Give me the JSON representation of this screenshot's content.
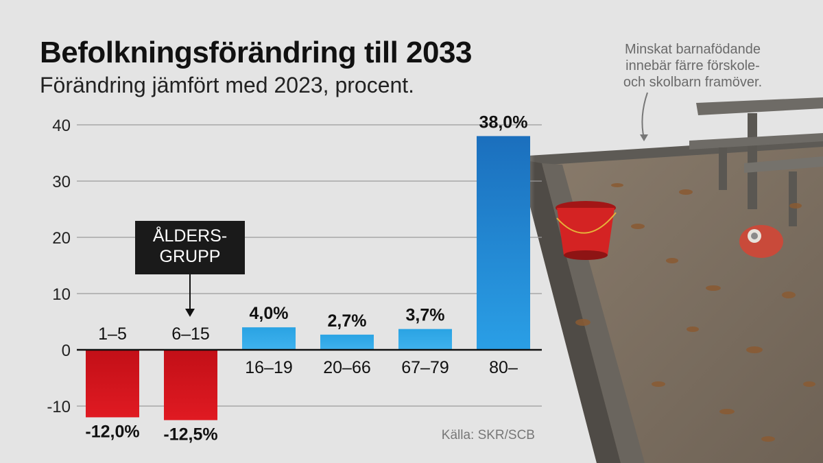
{
  "header": {
    "title": "Befolkningsförändring till 2033",
    "subtitle": "Förändring jämfört med 2023, procent."
  },
  "annotation": {
    "lines": [
      "Minskat barnafödande",
      "innebär färre förskole-",
      "och skolbarn framöver."
    ]
  },
  "callout": {
    "lines": [
      "ÅLDERS-",
      "GRUPP"
    ]
  },
  "source": "Källa: SKR/SCB",
  "colors": {
    "negative": "#d0141c",
    "positive": "#29a0e0",
    "highlight": "#1b7fc9",
    "gridline": "#9a9a9a",
    "background": "#e4e4e4"
  },
  "chart_data": {
    "type": "bar",
    "title": "Befolkningsförändring till 2033",
    "subtitle": "Förändring jämfört med 2023, procent.",
    "categories": [
      "1–5",
      "6–15",
      "16–19",
      "20–66",
      "67–79",
      "80–"
    ],
    "values": [
      -12.0,
      -12.5,
      4.0,
      2.7,
      3.7,
      38.0
    ],
    "data_labels": [
      "-12,0%",
      "-12,5%",
      "4,0%",
      "2,7%",
      "3,7%",
      "38,0%"
    ],
    "ylim": [
      -10,
      40
    ],
    "yticks": [
      "40",
      "30",
      "20",
      "10",
      "0",
      "-10"
    ],
    "ytick_values": [
      40,
      30,
      20,
      10,
      0,
      -10
    ],
    "grid": true,
    "legend": "none"
  }
}
